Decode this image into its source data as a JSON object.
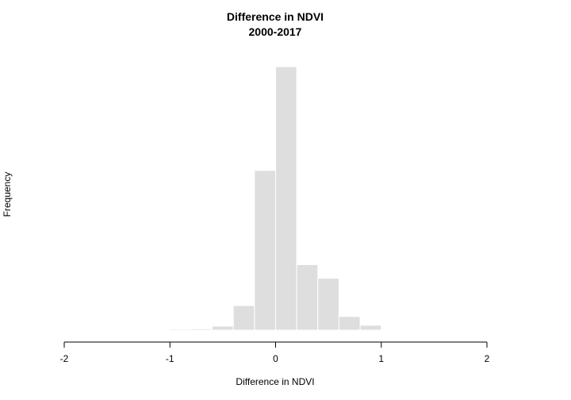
{
  "chart_data": {
    "type": "bar",
    "title": "Difference in NDVI",
    "subtitle": "2000-2017",
    "xlabel": "Difference in NDVI",
    "ylabel": "Frequency",
    "xlim": [
      -2,
      2
    ],
    "x_ticks": [
      -2,
      -1,
      0,
      1,
      2
    ],
    "x_tick_labels": [
      "-2",
      "-1",
      "0",
      "1",
      "2"
    ],
    "y_axis_drawn": false,
    "grid": false,
    "legend": "none",
    "bar_color": "#dedede",
    "bar_edge_color": "#ffffff",
    "axis_color": "#000000",
    "bin_width": 0.2,
    "bins": [
      {
        "start": -1.0,
        "end": -0.8,
        "value": 0.4
      },
      {
        "start": -0.8,
        "end": -0.6,
        "value": 0.5
      },
      {
        "start": -0.6,
        "end": -0.4,
        "value": 1.5
      },
      {
        "start": -0.4,
        "end": -0.2,
        "value": 9.0
      },
      {
        "start": -0.2,
        "end": 0.0,
        "value": 58.5
      },
      {
        "start": 0.0,
        "end": 0.2,
        "value": 96.5
      },
      {
        "start": 0.2,
        "end": 0.4,
        "value": 24.0
      },
      {
        "start": 0.4,
        "end": 0.6,
        "value": 19.0
      },
      {
        "start": 0.6,
        "end": 0.8,
        "value": 5.0
      },
      {
        "start": 0.8,
        "end": 1.0,
        "value": 1.8
      },
      {
        "start": 1.0,
        "end": 1.2,
        "value": 0.3
      }
    ],
    "ylim": [
      0,
      100
    ]
  }
}
